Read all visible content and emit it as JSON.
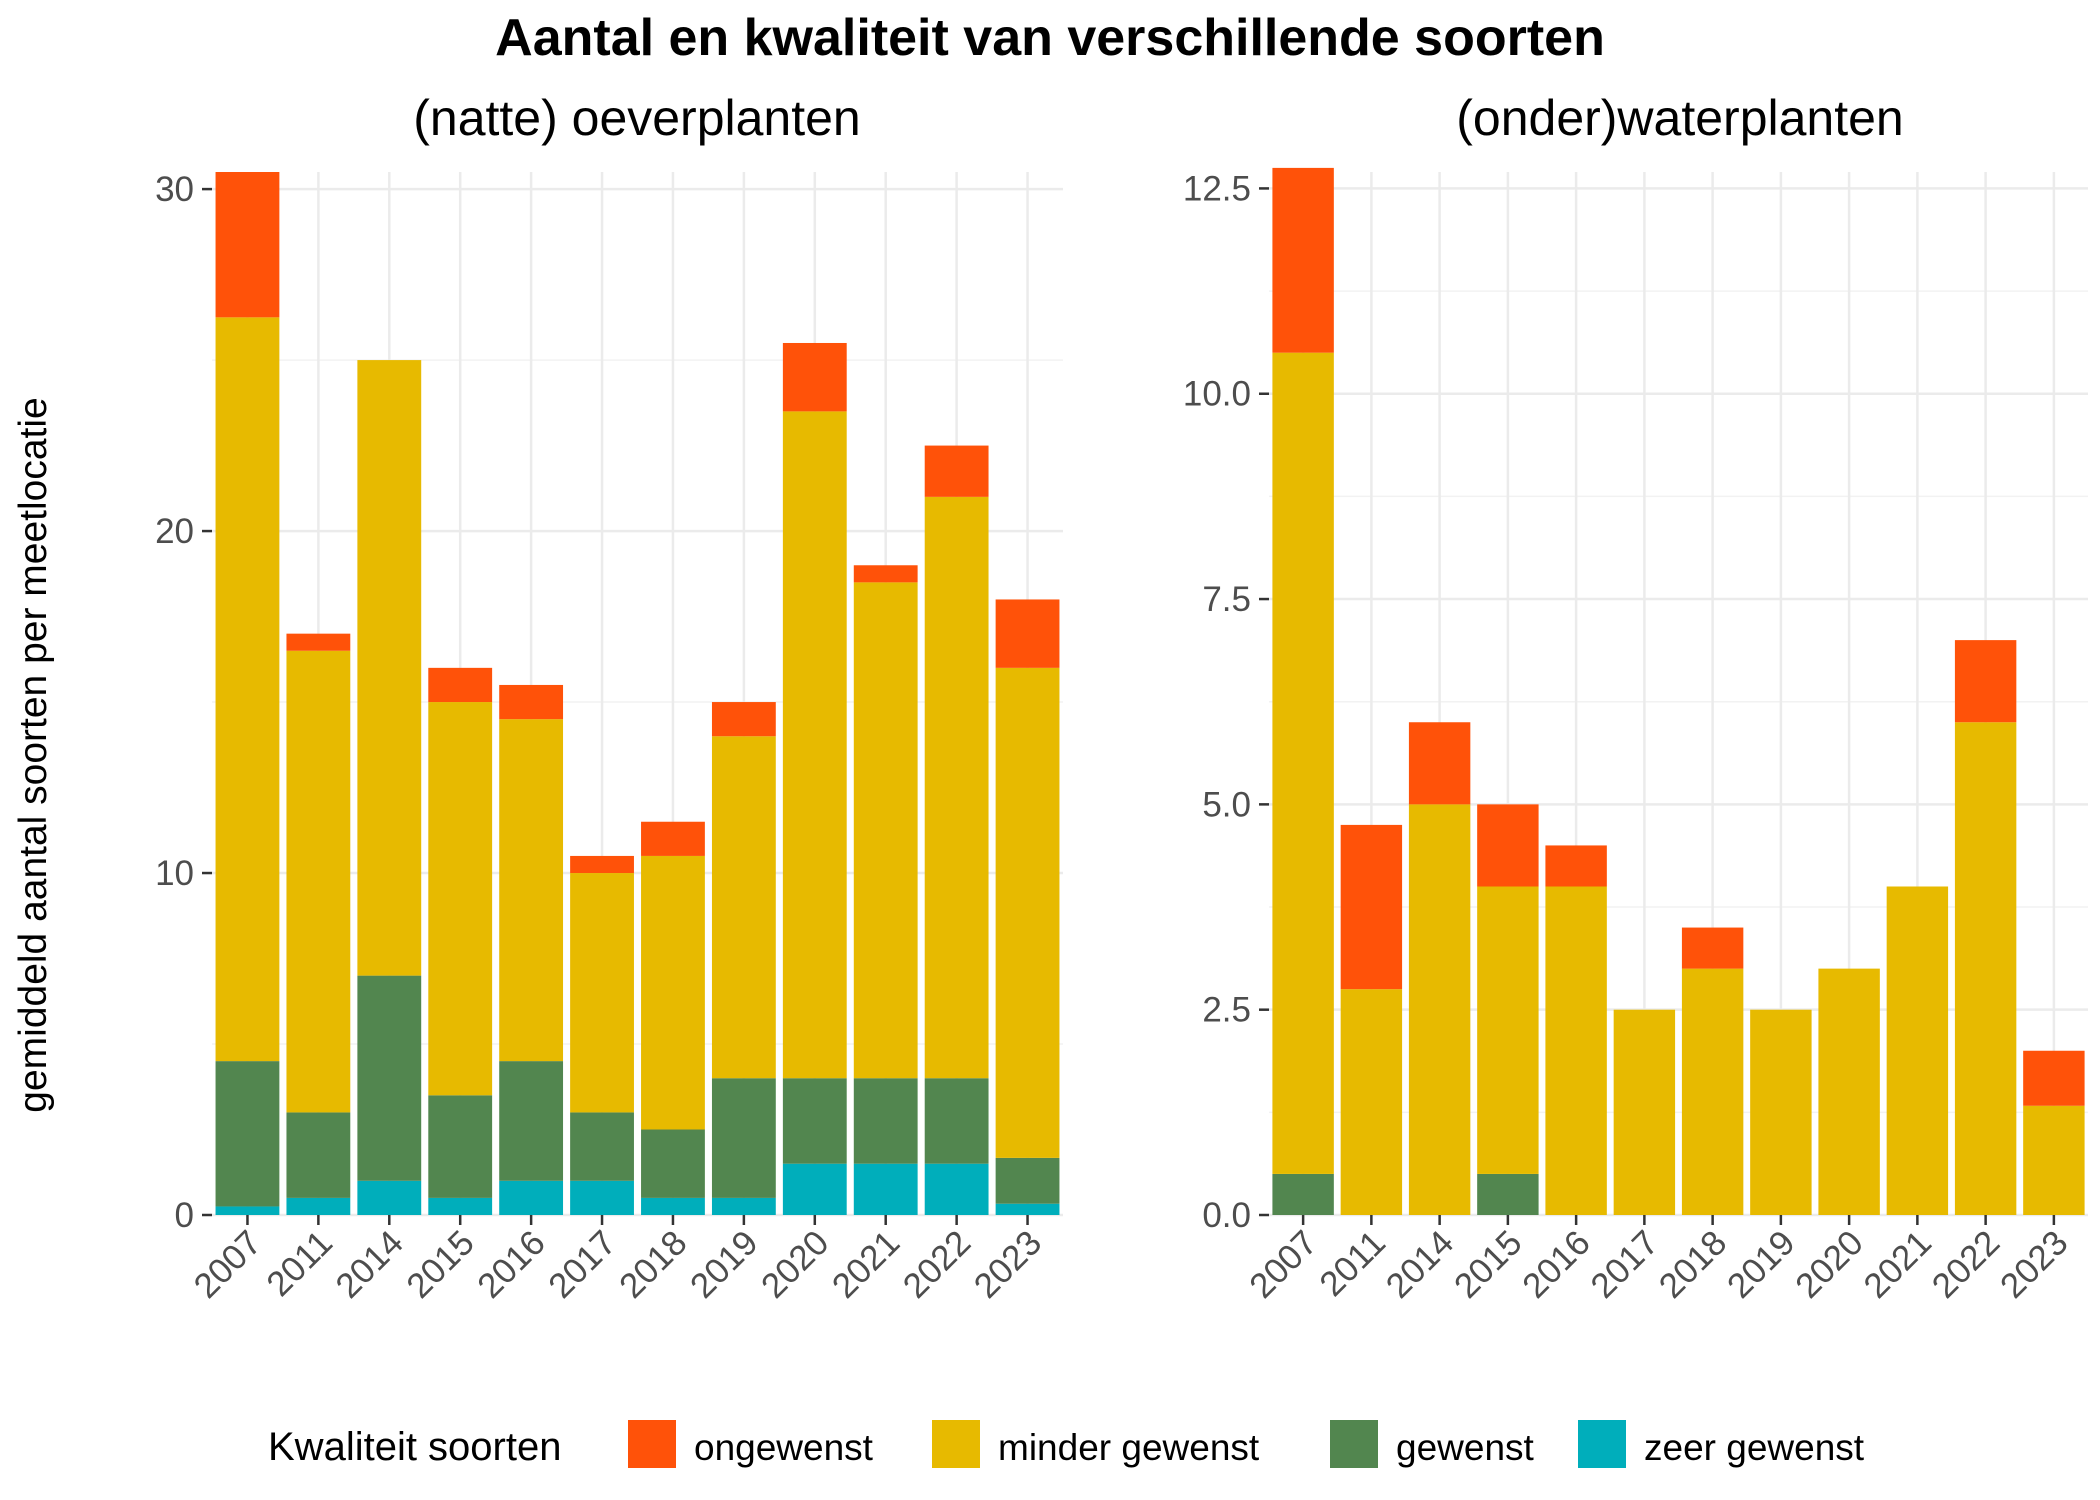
{
  "title": "Aantal en kwaliteit van verschillende soorten",
  "chart_data": {
    "type": "bar",
    "stacked": true,
    "title": "Aantal en kwaliteit van verschillende soorten",
    "ylabel": "gemiddeld aantal soorten per meetlocatie",
    "grid": true,
    "legend": {
      "position": "bottom",
      "title": "Kwaliteit soorten",
      "items": [
        {
          "key": "ongewenst",
          "label": "ongewenst",
          "color": "#ff5209"
        },
        {
          "key": "minder_gewenst",
          "label": "minder gewenst",
          "color": "#e7ba00"
        },
        {
          "key": "gewenst",
          "label": "gewenst",
          "color": "#52864f"
        },
        {
          "key": "zeer_gewenst",
          "label": "zeer gewenst",
          "color": "#00aebb"
        }
      ]
    },
    "panels": [
      {
        "subtitle": "(natte) oeverplanten",
        "ylim": [
          0,
          30.5
        ],
        "yticks": [
          0,
          10,
          20,
          30
        ],
        "ytick_labels": [
          "0",
          "10",
          "20",
          "30"
        ],
        "categories": [
          "2007",
          "2011",
          "2014",
          "2015",
          "2016",
          "2017",
          "2018",
          "2019",
          "2020",
          "2021",
          "2022",
          "2023"
        ],
        "series": [
          {
            "key": "zeer_gewenst",
            "values": [
              0.25,
              0.5,
              1.0,
              0.5,
              1.0,
              1.0,
              0.5,
              0.5,
              1.5,
              1.5,
              1.5,
              0.33
            ]
          },
          {
            "key": "gewenst",
            "values": [
              4.25,
              2.5,
              6.0,
              3.0,
              3.5,
              2.0,
              2.0,
              3.5,
              2.5,
              2.5,
              2.5,
              1.34
            ]
          },
          {
            "key": "minder_gewenst",
            "values": [
              21.75,
              13.5,
              18.0,
              11.5,
              10.0,
              7.0,
              8.0,
              10.0,
              19.5,
              14.5,
              17.0,
              14.33
            ]
          },
          {
            "key": "ongewenst",
            "values": [
              4.25,
              0.5,
              0.0,
              1.0,
              1.0,
              0.5,
              1.0,
              1.0,
              2.0,
              0.5,
              1.5,
              2.0
            ]
          }
        ]
      },
      {
        "subtitle": "(onder)waterplanten",
        "ylim": [
          0,
          12.7
        ],
        "yticks": [
          0,
          2.5,
          5,
          7.5,
          10,
          12.5
        ],
        "ytick_labels": [
          "0.0",
          "2.5",
          "5.0",
          "7.5",
          "10.0",
          "12.5"
        ],
        "categories": [
          "2007",
          "2011",
          "2014",
          "2015",
          "2016",
          "2017",
          "2018",
          "2019",
          "2020",
          "2021",
          "2022",
          "2023"
        ],
        "series": [
          {
            "key": "zeer_gewenst",
            "values": [
              0,
              0,
              0,
              0,
              0,
              0,
              0,
              0,
              0,
              0,
              0,
              0
            ]
          },
          {
            "key": "gewenst",
            "values": [
              0.5,
              0,
              0,
              0.5,
              0,
              0,
              0,
              0,
              0,
              0,
              0,
              0
            ]
          },
          {
            "key": "minder_gewenst",
            "values": [
              10.0,
              2.75,
              5.0,
              3.5,
              4.0,
              2.5,
              3.0,
              2.5,
              3.0,
              4.0,
              6.0,
              1.33
            ]
          },
          {
            "key": "ongewenst",
            "values": [
              2.25,
              2.0,
              1.0,
              1.0,
              0.5,
              0,
              0.5,
              0,
              0,
              0,
              1.0,
              0.67
            ]
          }
        ]
      }
    ]
  }
}
